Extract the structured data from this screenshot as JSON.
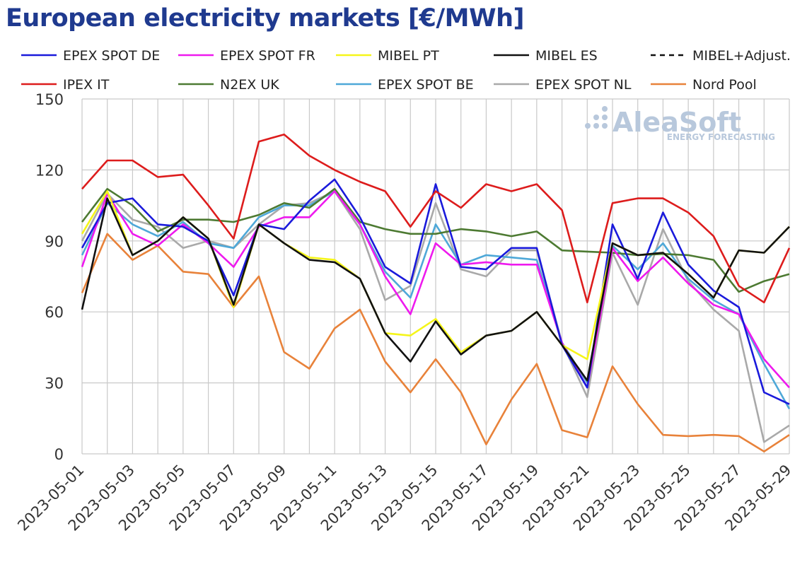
{
  "title": "European electricity markets [€/MWh]",
  "logo": {
    "name": "AleaSoft",
    "tagline": "ENERGY FORECASTING"
  },
  "chart_data": {
    "type": "line",
    "title": "European electricity markets [€/MWh]",
    "xlabel": "",
    "ylabel": "",
    "ylim": [
      0,
      150
    ],
    "yticks": [
      0,
      30,
      60,
      90,
      120,
      150
    ],
    "grid": true,
    "legend_position": "top",
    "x": [
      "2023-05-01",
      "2023-05-02",
      "2023-05-03",
      "2023-05-04",
      "2023-05-05",
      "2023-05-06",
      "2023-05-07",
      "2023-05-08",
      "2023-05-09",
      "2023-05-10",
      "2023-05-11",
      "2023-05-12",
      "2023-05-13",
      "2023-05-14",
      "2023-05-15",
      "2023-05-16",
      "2023-05-17",
      "2023-05-18",
      "2023-05-19",
      "2023-05-20",
      "2023-05-21",
      "2023-05-22",
      "2023-05-23",
      "2023-05-24",
      "2023-05-25",
      "2023-05-26",
      "2023-05-27",
      "2023-05-28",
      "2023-05-29"
    ],
    "xtick_labels": [
      "2023-05-01",
      "2023-05-03",
      "2023-05-05",
      "2023-05-07",
      "2023-05-09",
      "2023-05-11",
      "2023-05-13",
      "2023-05-15",
      "2023-05-17",
      "2023-05-19",
      "2023-05-21",
      "2023-05-23",
      "2023-05-25",
      "2023-05-27",
      "2023-05-29"
    ],
    "series": [
      {
        "name": "Nord Pool",
        "color": "#e8823a",
        "dash": "",
        "values": [
          68,
          93,
          82,
          88,
          77,
          76,
          62,
          75,
          43,
          36,
          53,
          61,
          39,
          26,
          40,
          26,
          4,
          23,
          38,
          10,
          7,
          37,
          21,
          8,
          7.5,
          8,
          7.5,
          1,
          8
        ]
      },
      {
        "name": "EPEX SPOT NL",
        "color": "#a9a9a9",
        "dash": "",
        "values": [
          90,
          110,
          99,
          96,
          87,
          90,
          87,
          97,
          105,
          106,
          111,
          95,
          65,
          71,
          106,
          78,
          75,
          86,
          86,
          47,
          24,
          85,
          63,
          95,
          73,
          61,
          52,
          5,
          12
        ]
      },
      {
        "name": "EPEX SPOT BE",
        "color": "#4ea8d8",
        "dash": "",
        "values": [
          84,
          106,
          97,
          92,
          98,
          89,
          87,
          100,
          105,
          105,
          111,
          97,
          77,
          66,
          97,
          80,
          84,
          83,
          82,
          47,
          30,
          88,
          78,
          89,
          74,
          65,
          59,
          38,
          19
        ]
      },
      {
        "name": "N2EX UK",
        "color": "#4d7a32",
        "dash": "",
        "values": [
          98,
          112,
          105,
          94,
          99,
          99,
          98,
          101,
          106,
          104,
          112,
          98,
          95,
          93,
          93,
          95,
          94,
          92,
          94,
          86,
          85.5,
          85,
          84,
          84.5,
          84,
          82,
          68.5,
          73,
          76
        ]
      },
      {
        "name": "EPEX SPOT FR",
        "color": "#ee1aee",
        "dash": "",
        "values": [
          79,
          110,
          93,
          88,
          97,
          89,
          79,
          96,
          100,
          100,
          111,
          97,
          75,
          59,
          89,
          80,
          81,
          80,
          80,
          47,
          28,
          87,
          73,
          83,
          72,
          63,
          59,
          40,
          28
        ]
      },
      {
        "name": "EPEX SPOT DE",
        "color": "#1a1adb",
        "dash": "",
        "values": [
          87,
          106,
          108,
          97,
          96,
          90,
          67,
          97,
          95,
          107,
          116,
          100,
          79,
          72,
          114,
          79,
          78,
          87,
          87,
          46,
          28,
          97,
          74,
          102,
          80,
          69,
          62,
          26,
          21
        ]
      },
      {
        "name": "MIBEL PT",
        "color": "#f5f51a",
        "dash": "",
        "values": [
          93,
          111,
          84,
          90,
          100,
          91,
          62,
          97,
          89,
          83,
          82,
          74,
          51,
          50,
          57,
          43,
          50,
          52,
          60,
          46,
          40,
          89,
          84,
          85,
          76,
          66,
          86,
          85,
          96
        ]
      },
      {
        "name": "MIBEL+Adjust.",
        "color": "#111111",
        "dash": "7,6",
        "values": [
          null,
          null,
          null,
          null,
          null,
          null,
          null,
          null,
          null,
          null,
          null,
          null,
          null,
          null,
          null,
          null,
          null,
          null,
          null,
          null,
          null,
          null,
          null,
          null,
          null,
          null,
          null,
          null,
          null
        ]
      },
      {
        "name": "MIBEL ES",
        "color": "#111111",
        "dash": "",
        "values": [
          61,
          108,
          84,
          90,
          100,
          91,
          63,
          97,
          89,
          82,
          81,
          74,
          51,
          39,
          56,
          42,
          50,
          52,
          60,
          46,
          31,
          89,
          84,
          85,
          76,
          66,
          86,
          85,
          96
        ]
      },
      {
        "name": "IPEX IT",
        "color": "#dd1c1c",
        "dash": "",
        "values": [
          112,
          124,
          124,
          117,
          118,
          105,
          91,
          132,
          135,
          126,
          120,
          115,
          111,
          96,
          111,
          104,
          114,
          111,
          114,
          103,
          64,
          106,
          108,
          108,
          102,
          92,
          71,
          64,
          87
        ]
      }
    ]
  }
}
